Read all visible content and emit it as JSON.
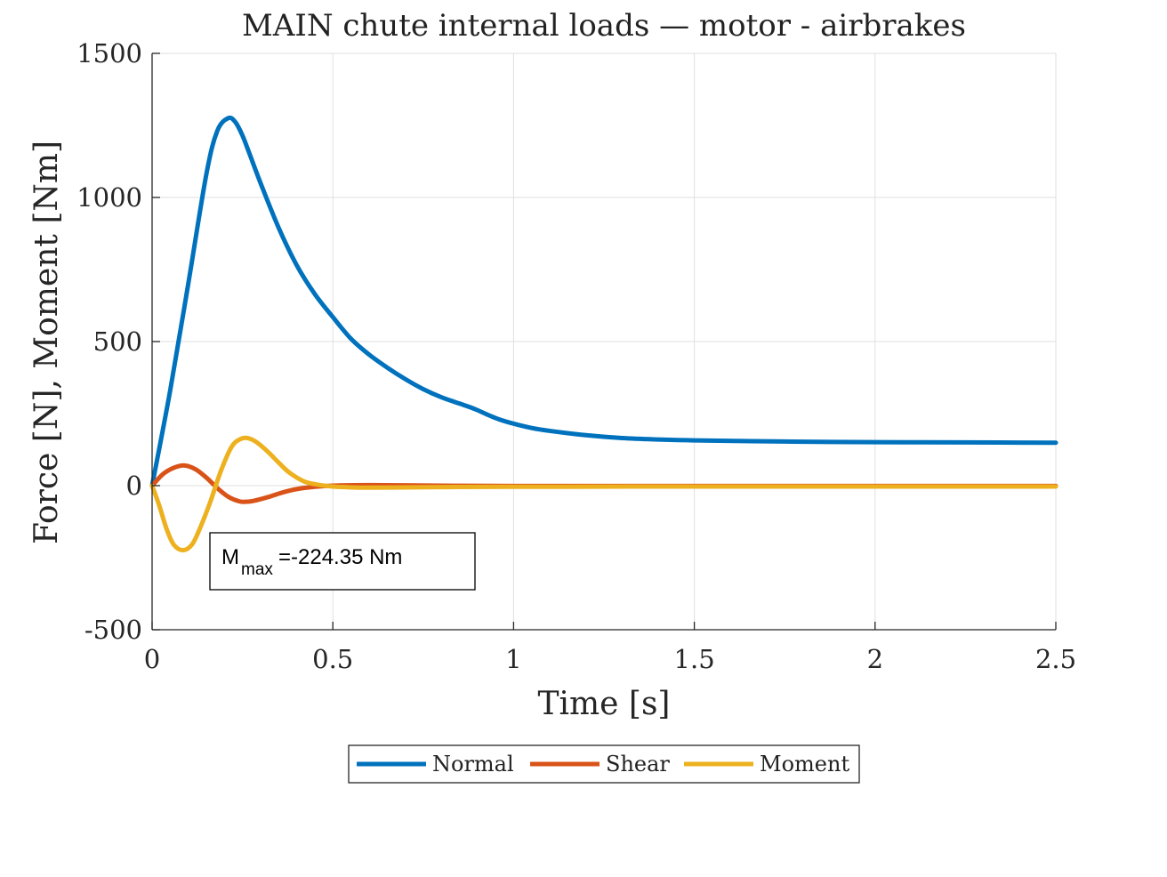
{
  "chart_data": {
    "type": "line",
    "title": "MAIN chute internal loads — motor - airbrakes",
    "xlabel": "Time [s]",
    "ylabel": "Force [N], Moment [Nm]",
    "xlim": [
      0,
      2.5
    ],
    "ylim": [
      -500,
      1500
    ],
    "xticks": [
      0,
      0.5,
      1,
      1.5,
      2,
      2.5
    ],
    "xtick_labels": [
      "0",
      "0.5",
      "1",
      "1.5",
      "2",
      "2.5"
    ],
    "yticks": [
      -500,
      0,
      500,
      1000,
      1500
    ],
    "ytick_labels": [
      "-500",
      "0",
      "500",
      "1000",
      "1500"
    ],
    "grid": true,
    "legend_position": "bottom-outside",
    "annotation": {
      "main": "M",
      "sub": "max",
      "rest": "=-224.35 Nm"
    },
    "series": [
      {
        "name": "Normal",
        "color": "#0072BD",
        "x": [
          0,
          0.05,
          0.1,
          0.15,
          0.18,
          0.21,
          0.23,
          0.25,
          0.27,
          0.3,
          0.35,
          0.4,
          0.45,
          0.5,
          0.55,
          0.6,
          0.65,
          0.7,
          0.75,
          0.8,
          0.85,
          0.88,
          0.9,
          0.93,
          0.96,
          1.0,
          1.05,
          1.1,
          1.2,
          1.3,
          1.4,
          1.5,
          1.75,
          2.0,
          2.25,
          2.5
        ],
        "y": [
          0,
          330,
          700,
          1080,
          1230,
          1275,
          1262,
          1215,
          1150,
          1050,
          895,
          765,
          665,
          585,
          510,
          455,
          410,
          370,
          335,
          307,
          285,
          272,
          262,
          245,
          230,
          215,
          200,
          190,
          175,
          165,
          160,
          157,
          153,
          151,
          150,
          149
        ]
      },
      {
        "name": "Shear",
        "color": "#D95319",
        "x": [
          0,
          0.03,
          0.06,
          0.09,
          0.12,
          0.15,
          0.18,
          0.21,
          0.24,
          0.26,
          0.28,
          0.32,
          0.36,
          0.4,
          0.45,
          0.5,
          0.6,
          0.8,
          1.0,
          1.5,
          2.0,
          2.5
        ],
        "y": [
          0,
          40,
          62,
          70,
          57,
          28,
          -8,
          -38,
          -54,
          -56,
          -53,
          -40,
          -24,
          -12,
          -4,
          0,
          2,
          0,
          -1,
          -1,
          -1,
          -1
        ]
      },
      {
        "name": "Moment",
        "color": "#EDB120",
        "x": [
          0,
          0.02,
          0.04,
          0.06,
          0.085,
          0.11,
          0.13,
          0.16,
          0.19,
          0.22,
          0.245,
          0.265,
          0.29,
          0.32,
          0.35,
          0.38,
          0.42,
          0.46,
          0.5,
          0.55,
          0.6,
          0.7,
          0.8,
          1.0,
          1.5,
          2.0,
          2.5
        ],
        "y": [
          0,
          -70,
          -150,
          -205,
          -224,
          -205,
          -155,
          -60,
          50,
          135,
          162,
          165,
          150,
          118,
          80,
          45,
          15,
          3,
          -3,
          -6,
          -7,
          -6,
          -5,
          -4,
          -3,
          -3,
          -3
        ]
      }
    ]
  }
}
